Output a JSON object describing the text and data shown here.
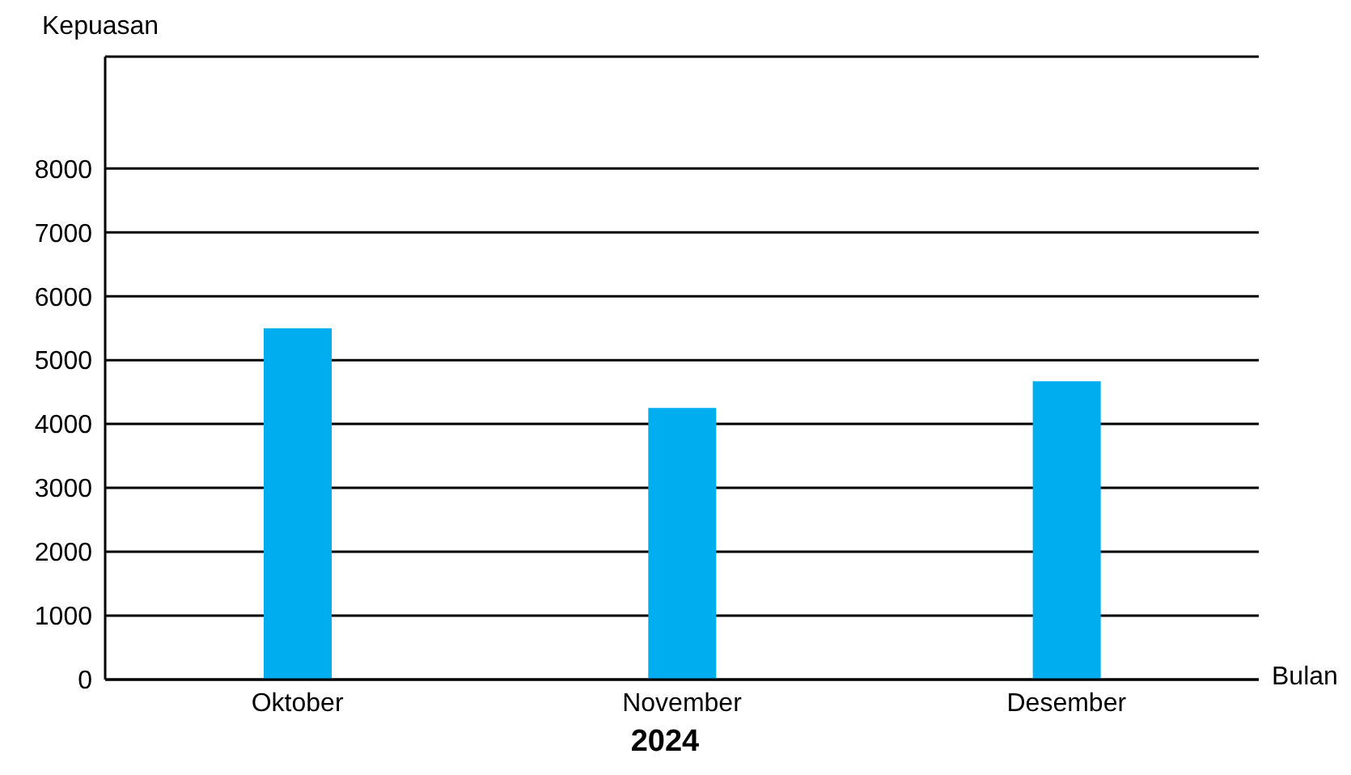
{
  "chart_data": {
    "type": "bar",
    "ylabel": "Kepuasan",
    "xlabel": "Bulan",
    "annotations": [
      "2024"
    ],
    "categories": [
      "Oktober",
      "November",
      "Desember"
    ],
    "values": [
      5500,
      4250,
      4670
    ],
    "color": "#00aeef",
    "ylim": [
      0,
      9750
    ],
    "yticks": [
      0,
      1000,
      2000,
      3000,
      4000,
      5000,
      6000,
      7000,
      8000
    ],
    "grid": "y"
  }
}
